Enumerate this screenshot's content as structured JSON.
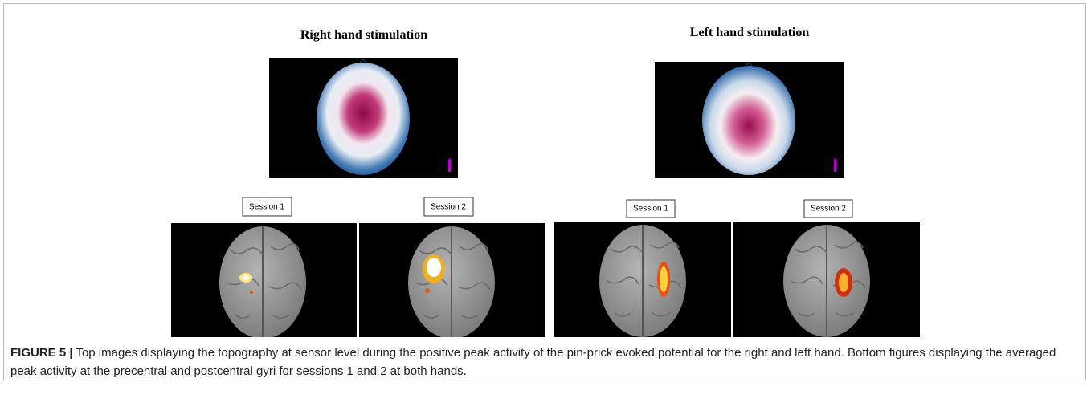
{
  "panels": [
    {
      "title": "Right hand stimulation",
      "sessions": [
        "Session 1",
        "Session 2"
      ]
    },
    {
      "title": "Left hand stimulation",
      "sessions": [
        "Session 1",
        "Session 2"
      ]
    }
  ],
  "caption": {
    "label": "FIGURE 5 |",
    "text": "Top images displaying the topography at sensor level during the positive peak activity of the pin-prick evoked potential for the right and left hand. Bottom figures displaying the averaged peak activity at the precentral and postcentral gyri for sessions 1 and 2 at both hands."
  }
}
